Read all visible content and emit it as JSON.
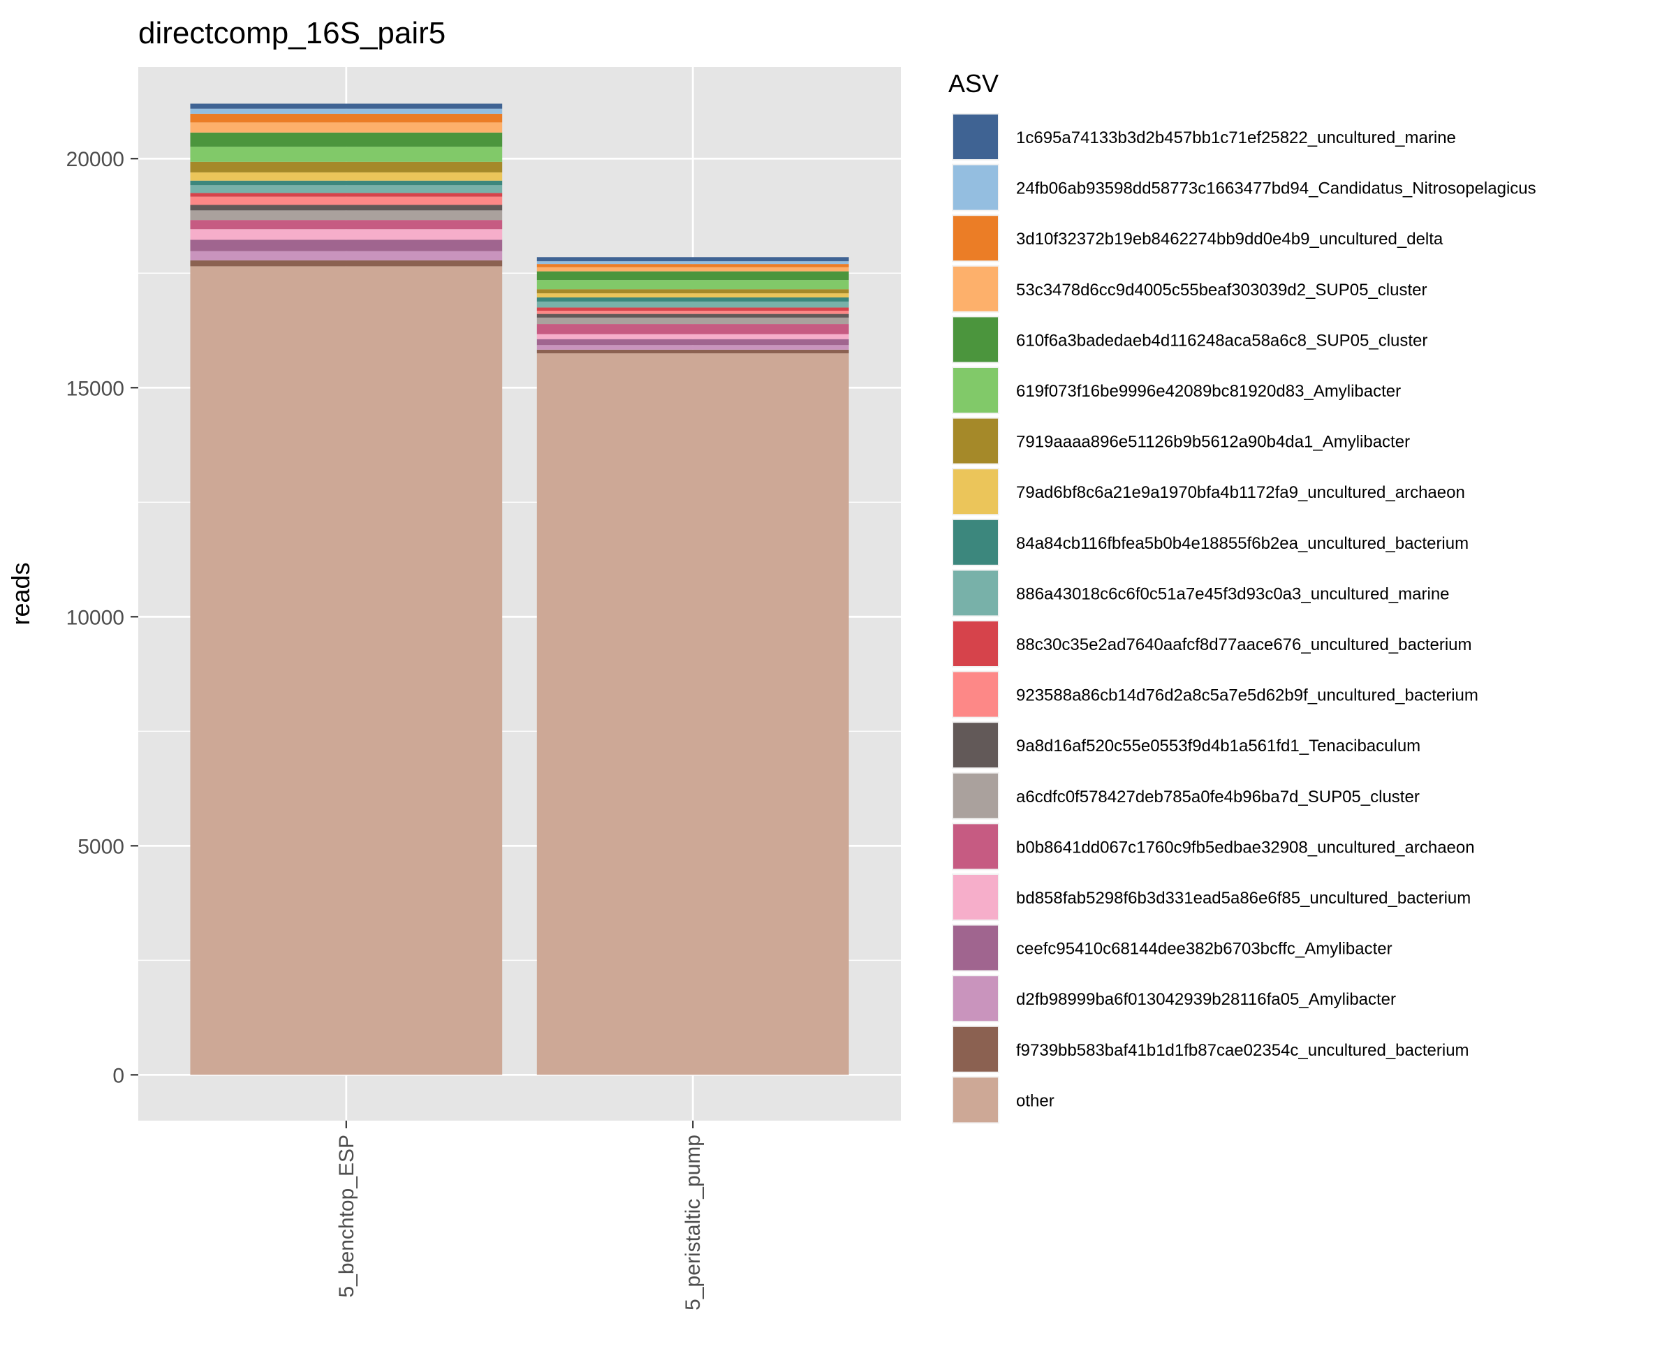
{
  "chart_data": {
    "type": "bar",
    "stacked": true,
    "title": "directcomp_16S_pair5",
    "xlabel": "",
    "ylabel": "reads",
    "ylim": [
      -1000,
      22000
    ],
    "yticks": [
      0,
      5000,
      10000,
      15000,
      20000
    ],
    "grid": true,
    "legend_title": "ASV",
    "legend_position": "right",
    "categories": [
      "5_benchtop_ESP",
      "5_peristaltic_pump"
    ],
    "series": [
      {
        "name": "other",
        "color": "#CDA896",
        "values": [
          17650,
          15750
        ]
      },
      {
        "name": "f9739bb583baf41b1d1fb87cae02354c_uncultured_bacterium",
        "color": "#8B6151",
        "values": [
          130,
          80
        ]
      },
      {
        "name": "d2fb98999ba6f013042939b28116fa05_Amylibacter",
        "color": "#C994BD",
        "values": [
          200,
          100
        ]
      },
      {
        "name": "ceefc95410c68144dee382b6703bcffc_Amylibacter",
        "color": "#A0658F",
        "values": [
          250,
          130
        ]
      },
      {
        "name": "bd858fab5298f6b3d331ead5a86e6f85_uncultured_bacterium",
        "color": "#F6AECA",
        "values": [
          230,
          110
        ]
      },
      {
        "name": "b0b8641dd067c1760c9fb5edbae32908_uncultured_archaeon",
        "color": "#C65B82",
        "values": [
          200,
          220
        ]
      },
      {
        "name": "a6cdfc0f578427deb785a0fe4b96ba7d_SUP05_cluster",
        "color": "#AAA19D",
        "values": [
          210,
          140
        ]
      },
      {
        "name": "9a8d16af520c55e0553f9d4b1a561fd1_Tenacibaculum",
        "color": "#625958",
        "values": [
          120,
          80
        ]
      },
      {
        "name": "923588a86cb14d76d2a8c5a7e5d62b9f_uncultured_bacterium",
        "color": "#FD8887",
        "values": [
          180,
          70
        ]
      },
      {
        "name": "88c30c35e2ad7640aafcf8d77aace676_uncultured_bacterium",
        "color": "#D6434B",
        "values": [
          80,
          70
        ]
      },
      {
        "name": "886a43018c6c6f0c51a7e45f3d93c0a3_uncultured_marine",
        "color": "#78B1A9",
        "values": [
          170,
          130
        ]
      },
      {
        "name": "84a84cb116fbfea5b0b4e18855f6b2ea_uncultured_bacterium",
        "color": "#3C877D",
        "values": [
          100,
          90
        ]
      },
      {
        "name": "79ad6bf8c6a21e9a1970bfa4b1172fa9_uncultured_archaeon",
        "color": "#EBC55A",
        "values": [
          180,
          90
        ]
      },
      {
        "name": "7919aaaa896e51126b9b5612a90b4da1_Amylibacter",
        "color": "#A58929",
        "values": [
          230,
          90
        ]
      },
      {
        "name": "619f073f16be9996e42089bc81920d83_Amylibacter",
        "color": "#81C969",
        "values": [
          330,
          200
        ]
      },
      {
        "name": "610f6a3badedaeb4d116248aca58a6c8_SUP05_cluster",
        "color": "#4B953D",
        "values": [
          310,
          190
        ]
      },
      {
        "name": "53c3478d6cc9d4005c55beaf303039d2_SUP05_cluster",
        "color": "#FDB06B",
        "values": [
          220,
          90
        ]
      },
      {
        "name": "3d10f32372b19eb8462274bb9dd0e4b9_uncultured_delta",
        "color": "#EB7D26",
        "values": [
          190,
          70
        ]
      },
      {
        "name": "24fb06ab93598dd58773c1663477bd94_Candidatus_Nitrosopelagicus",
        "color": "#94BEE0",
        "values": [
          110,
          60
        ]
      },
      {
        "name": "1c695a74133b3d2b457bb1c71ef25822_uncultured_marine",
        "color": "#3F6393",
        "values": [
          110,
          90
        ]
      }
    ],
    "legend_order": [
      "1c695a74133b3d2b457bb1c71ef25822_uncultured_marine",
      "24fb06ab93598dd58773c1663477bd94_Candidatus_Nitrosopelagicus",
      "3d10f32372b19eb8462274bb9dd0e4b9_uncultured_delta",
      "53c3478d6cc9d4005c55beaf303039d2_SUP05_cluster",
      "610f6a3badedaeb4d116248aca58a6c8_SUP05_cluster",
      "619f073f16be9996e42089bc81920d83_Amylibacter",
      "7919aaaa896e51126b9b5612a90b4da1_Amylibacter",
      "79ad6bf8c6a21e9a1970bfa4b1172fa9_uncultured_archaeon",
      "84a84cb116fbfea5b0b4e18855f6b2ea_uncultured_bacterium",
      "886a43018c6c6f0c51a7e45f3d93c0a3_uncultured_marine",
      "88c30c35e2ad7640aafcf8d77aace676_uncultured_bacterium",
      "923588a86cb14d76d2a8c5a7e5d62b9f_uncultured_bacterium",
      "9a8d16af520c55e0553f9d4b1a561fd1_Tenacibaculum",
      "a6cdfc0f578427deb785a0fe4b96ba7d_SUP05_cluster",
      "b0b8641dd067c1760c9fb5edbae32908_uncultured_archaeon",
      "bd858fab5298f6b3d331ead5a86e6f85_uncultured_bacterium",
      "ceefc95410c68144dee382b6703bcffc_Amylibacter",
      "d2fb98999ba6f013042939b28116fa05_Amylibacter",
      "f9739bb583baf41b1d1fb87cae02354c_uncultured_bacterium",
      "other"
    ],
    "colors": {
      "panel_background": "#E5E5E5",
      "grid": "#FFFFFF",
      "text": "#000000",
      "tick_text": "#4D4D4D"
    }
  }
}
